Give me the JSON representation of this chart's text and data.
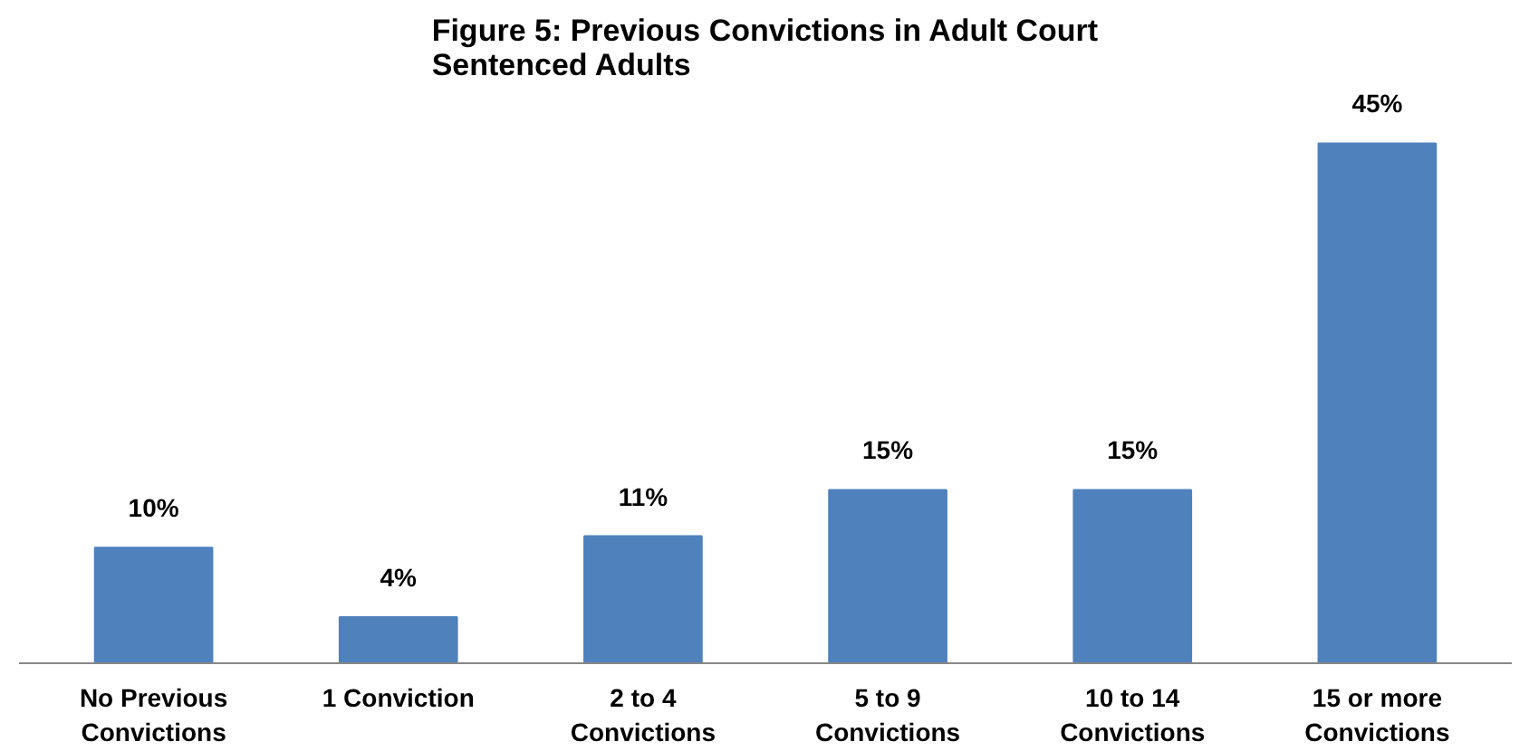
{
  "chart_data": {
    "type": "bar",
    "title": "Figure 5: Previous Convictions in Adult Court\nSentenced Adults",
    "categories": [
      "No Previous\nConvictions",
      "1 Conviction",
      "2 to 4\nConvictions",
      "5 to 9\nConvictions",
      "10 to 14\nConvictions",
      "15 or more\nConvictions"
    ],
    "values": [
      10,
      4,
      11,
      15,
      15,
      45
    ],
    "value_labels": [
      "10%",
      "4%",
      "11%",
      "15%",
      "15%",
      "45%"
    ],
    "color": "#4f81bd"
  }
}
